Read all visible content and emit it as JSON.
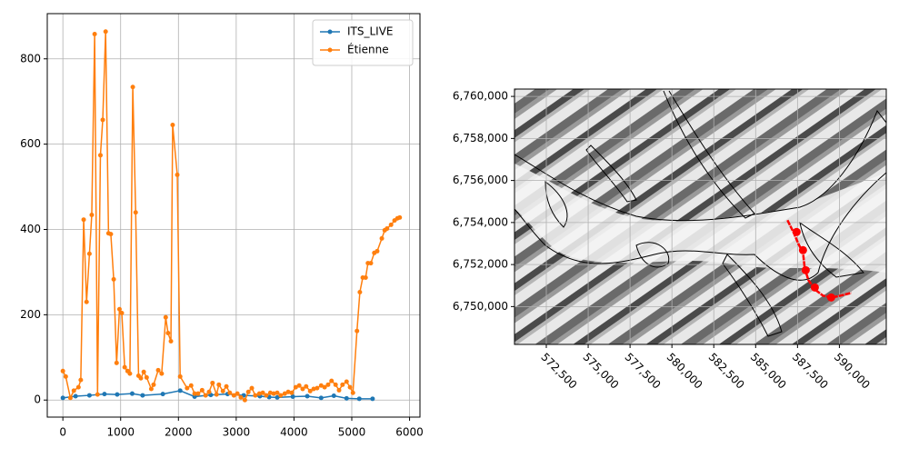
{
  "chart_data": [
    {
      "type": "line",
      "grid": true,
      "legend": "upper right",
      "xlim": [
        -270,
        6180
      ],
      "ylim": [
        -40,
        906
      ],
      "xticks": [
        0,
        1000,
        2000,
        3000,
        4000,
        5000,
        6000
      ],
      "yticks": [
        0,
        200,
        400,
        600,
        800
      ],
      "series": [
        {
          "name": "ITS_LIVE",
          "color": "#1f77b4",
          "x": [
            0,
            220,
            460,
            720,
            940,
            1200,
            1380,
            1730,
            2030,
            2280,
            2560,
            2850,
            3130,
            3410,
            3570,
            3710,
            3980,
            4230,
            4470,
            4690,
            4910,
            5130,
            5360
          ],
          "values": [
            5,
            9,
            11,
            14,
            13,
            15,
            11,
            14,
            22,
            8,
            12,
            14,
            11,
            9,
            7,
            6,
            8,
            9,
            5,
            10,
            4,
            3,
            3
          ]
        },
        {
          "name": "Étienne",
          "color": "#ff7f0e",
          "x": [
            0,
            50,
            130,
            190,
            270,
            310,
            360,
            410,
            460,
            500,
            550,
            600,
            650,
            690,
            740,
            790,
            830,
            880,
            930,
            980,
            1020,
            1070,
            1120,
            1160,
            1210,
            1260,
            1310,
            1350,
            1400,
            1450,
            1530,
            1570,
            1650,
            1710,
            1780,
            1820,
            1870,
            1900,
            1980,
            2030,
            2150,
            2220,
            2280,
            2340,
            2410,
            2470,
            2530,
            2590,
            2660,
            2700,
            2770,
            2830,
            2890,
            2960,
            3020,
            3080,
            3150,
            3210,
            3270,
            3330,
            3400,
            3460,
            3520,
            3590,
            3650,
            3710,
            3770,
            3840,
            3900,
            3960,
            4030,
            4090,
            4150,
            4210,
            4280,
            4340,
            4400,
            4470,
            4530,
            4590,
            4650,
            4720,
            4780,
            4840,
            4910,
            4970,
            5020,
            5090,
            5140,
            5190,
            5240,
            5280,
            5330,
            5390,
            5440,
            5520,
            5570,
            5610,
            5680,
            5740,
            5790,
            5830
          ],
          "values": [
            68,
            55,
            5,
            22,
            30,
            47,
            423,
            230,
            343,
            434,
            858,
            13,
            574,
            657,
            864,
            391,
            389,
            283,
            87,
            213,
            204,
            77,
            68,
            62,
            734,
            440,
            57,
            51,
            66,
            53,
            26,
            36,
            70,
            62,
            194,
            157,
            138,
            645,
            528,
            55,
            28,
            34,
            15,
            15,
            23,
            11,
            19,
            40,
            13,
            36,
            21,
            32,
            17,
            11,
            15,
            6,
            0,
            19,
            28,
            11,
            15,
            17,
            11,
            17,
            15,
            17,
            11,
            15,
            19,
            17,
            30,
            34,
            26,
            32,
            21,
            26,
            28,
            34,
            30,
            36,
            45,
            36,
            23,
            36,
            43,
            30,
            17,
            162,
            253,
            287,
            287,
            321,
            321,
            345,
            349,
            379,
            398,
            402,
            411,
            421,
            426,
            428
          ]
        }
      ]
    },
    {
      "type": "map",
      "grid": true,
      "xlim": [
        570600,
        592800
      ],
      "ylim": [
        6748200,
        6760350
      ],
      "xticks": [
        {
          "value": 572500,
          "label": "572,500"
        },
        {
          "value": 575000,
          "label": "575,000"
        },
        {
          "value": 577500,
          "label": "577,500"
        },
        {
          "value": 580000,
          "label": "580,000"
        },
        {
          "value": 582500,
          "label": "582,500"
        },
        {
          "value": 585000,
          "label": "585,000"
        },
        {
          "value": 587500,
          "label": "587,500"
        },
        {
          "value": 590000,
          "label": "590,000"
        }
      ],
      "yticks": [
        {
          "value": 6750000,
          "label": "6,750,000"
        },
        {
          "value": 6752000,
          "label": "6,752,000"
        },
        {
          "value": 6754000,
          "label": "6,754,000"
        },
        {
          "value": 6756000,
          "label": "6,756,000"
        },
        {
          "value": 6758000,
          "label": "6,758,000"
        },
        {
          "value": 6760000,
          "label": "6,760,000"
        }
      ],
      "series": [
        {
          "mode": "line",
          "color": "#ff0000",
          "x": [
            586900,
            587280,
            587550,
            587830,
            587930,
            588150,
            588530,
            589020,
            589570,
            590270,
            590710
          ],
          "values": [
            6754110,
            6753500,
            6752990,
            6752550,
            6751820,
            6751260,
            6750820,
            6750520,
            6750430,
            6750560,
            6750650
          ]
        },
        {
          "mode": "markers",
          "color": "#ff0000",
          "x": [
            587446,
            587826,
            587989,
            588533,
            589511
          ],
          "values": [
            6753550,
            6752684,
            6751732,
            6750909,
            6750433
          ]
        }
      ]
    }
  ]
}
